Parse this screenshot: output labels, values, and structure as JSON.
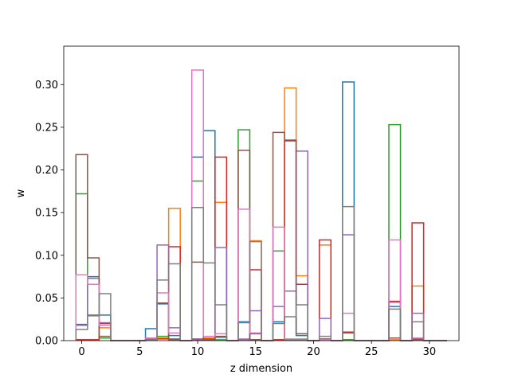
{
  "chart_data": {
    "type": "step-histogram",
    "xlabel": "z dimension",
    "ylabel": "w",
    "xlim": [
      -1.55,
      32.55
    ],
    "ylim": [
      0,
      0.345
    ],
    "xticks": [
      0,
      5,
      10,
      15,
      20,
      25,
      30
    ],
    "yticks": [
      0.0,
      0.05,
      0.1,
      0.15,
      0.2,
      0.25,
      0.3
    ],
    "bin_width": 1,
    "bin_start": -0.5,
    "categories": [
      0,
      1,
      2,
      3,
      4,
      5,
      6,
      7,
      8,
      9,
      10,
      11,
      12,
      13,
      14,
      15,
      16,
      17,
      18,
      19,
      20,
      21,
      22,
      23,
      24,
      25,
      26,
      27,
      28,
      29,
      30,
      31
    ],
    "series": [
      {
        "color": "#1f77b4",
        "values": [
          0.019,
          0.075,
          0.03,
          0,
          0,
          0,
          0.014,
          0.043,
          0.006,
          0,
          0.215,
          0.246,
          0.004,
          0,
          0.022,
          0.008,
          0,
          0.022,
          0.058,
          0.006,
          0,
          0.002,
          0,
          0.303,
          0,
          0,
          0,
          0.04,
          0,
          0.002,
          0,
          0
        ]
      },
      {
        "color": "#ff7f0e",
        "values": [
          0.001,
          0.001,
          0.015,
          0,
          0,
          0,
          0.001,
          0.003,
          0.155,
          0,
          0.002,
          0.003,
          0.162,
          0,
          0.002,
          0.117,
          0,
          0.001,
          0.296,
          0.076,
          0,
          0.112,
          0,
          0.001,
          0,
          0,
          0,
          0.001,
          0,
          0.064,
          0,
          0
        ]
      },
      {
        "color": "#2ca02c",
        "values": [
          0.172,
          0.03,
          0.003,
          0,
          0,
          0,
          0.001,
          0.005,
          0.002,
          0,
          0.187,
          0.002,
          0.001,
          0,
          0.247,
          0.001,
          0,
          0.105,
          0.001,
          0.001,
          0,
          0.001,
          0,
          0.001,
          0,
          0,
          0,
          0.253,
          0,
          0.001,
          0,
          0
        ]
      },
      {
        "color": "#d62728",
        "values": [
          0.001,
          0.001,
          0.02,
          0,
          0,
          0,
          0.001,
          0.002,
          0.11,
          0,
          0.001,
          0.001,
          0.215,
          0,
          0.001,
          0.083,
          0,
          0.001,
          0.234,
          0.066,
          0,
          0.118,
          0,
          0.01,
          0,
          0,
          0,
          0.046,
          0,
          0.138,
          0,
          0
        ]
      },
      {
        "color": "#9467bd",
        "values": [
          0.018,
          0.073,
          0.021,
          0,
          0,
          0,
          0.002,
          0.112,
          0.015,
          0,
          0.002,
          0.001,
          0.109,
          0,
          0.001,
          0.035,
          0,
          0.04,
          0.058,
          0.222,
          0,
          0.026,
          0,
          0.124,
          0,
          0,
          0,
          0.045,
          0,
          0.032,
          0,
          0
        ]
      },
      {
        "color": "#8c564b",
        "values": [
          0.218,
          0.097,
          0.005,
          0,
          0,
          0,
          0.001,
          0.044,
          0.001,
          0,
          0.092,
          0.001,
          0.005,
          0,
          0.223,
          0.001,
          0,
          0.244,
          0.235,
          0.008,
          0,
          0.001,
          0,
          0.009,
          0,
          0,
          0,
          0.003,
          0,
          0.001,
          0,
          0
        ]
      },
      {
        "color": "#e377c2",
        "values": [
          0.077,
          0.066,
          0.018,
          0,
          0,
          0,
          0.003,
          0.056,
          0.009,
          0,
          0.317,
          0.005,
          0.008,
          0,
          0.154,
          0.009,
          0,
          0.133,
          0.002,
          0.002,
          0,
          0.001,
          0,
          0.032,
          0,
          0,
          0,
          0.118,
          0,
          0.003,
          0,
          0
        ]
      },
      {
        "color": "#7f7f7f",
        "values": [
          0.013,
          0.029,
          0.055,
          0,
          0,
          0,
          0.001,
          0.071,
          0.09,
          0,
          0.156,
          0.091,
          0.042,
          0,
          0.021,
          0.116,
          0,
          0.02,
          0.028,
          0.042,
          0,
          0.005,
          0,
          0.157,
          0,
          0,
          0,
          0.037,
          0,
          0.022,
          0,
          0
        ]
      }
    ]
  }
}
